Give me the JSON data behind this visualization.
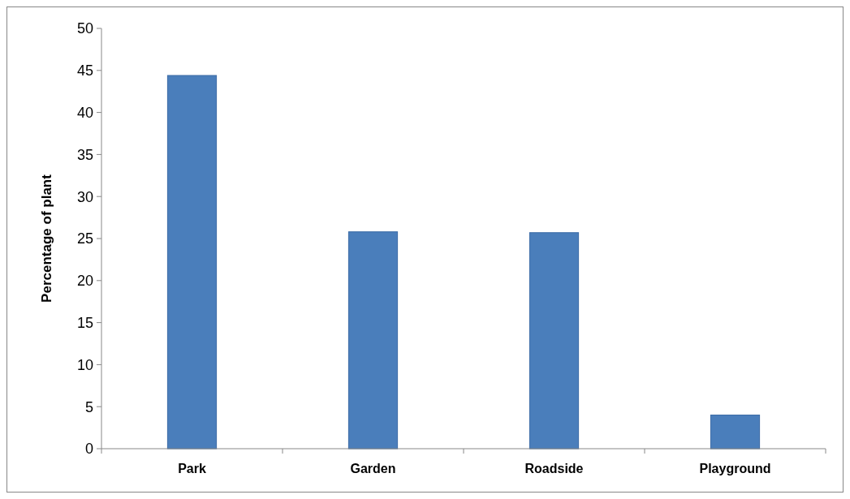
{
  "chart_data": {
    "type": "bar",
    "ylabel": "Percentage of plant",
    "categories": [
      "Park",
      "Garden",
      "Roadside",
      "Playground"
    ],
    "values": [
      44.4,
      25.8,
      25.7,
      4.0
    ],
    "color": "#4a7ebb",
    "ylim": [
      0,
      50
    ],
    "yticks": [
      0,
      5,
      10,
      15,
      20,
      25,
      30,
      35,
      40,
      45,
      50
    ],
    "grid": false
  }
}
